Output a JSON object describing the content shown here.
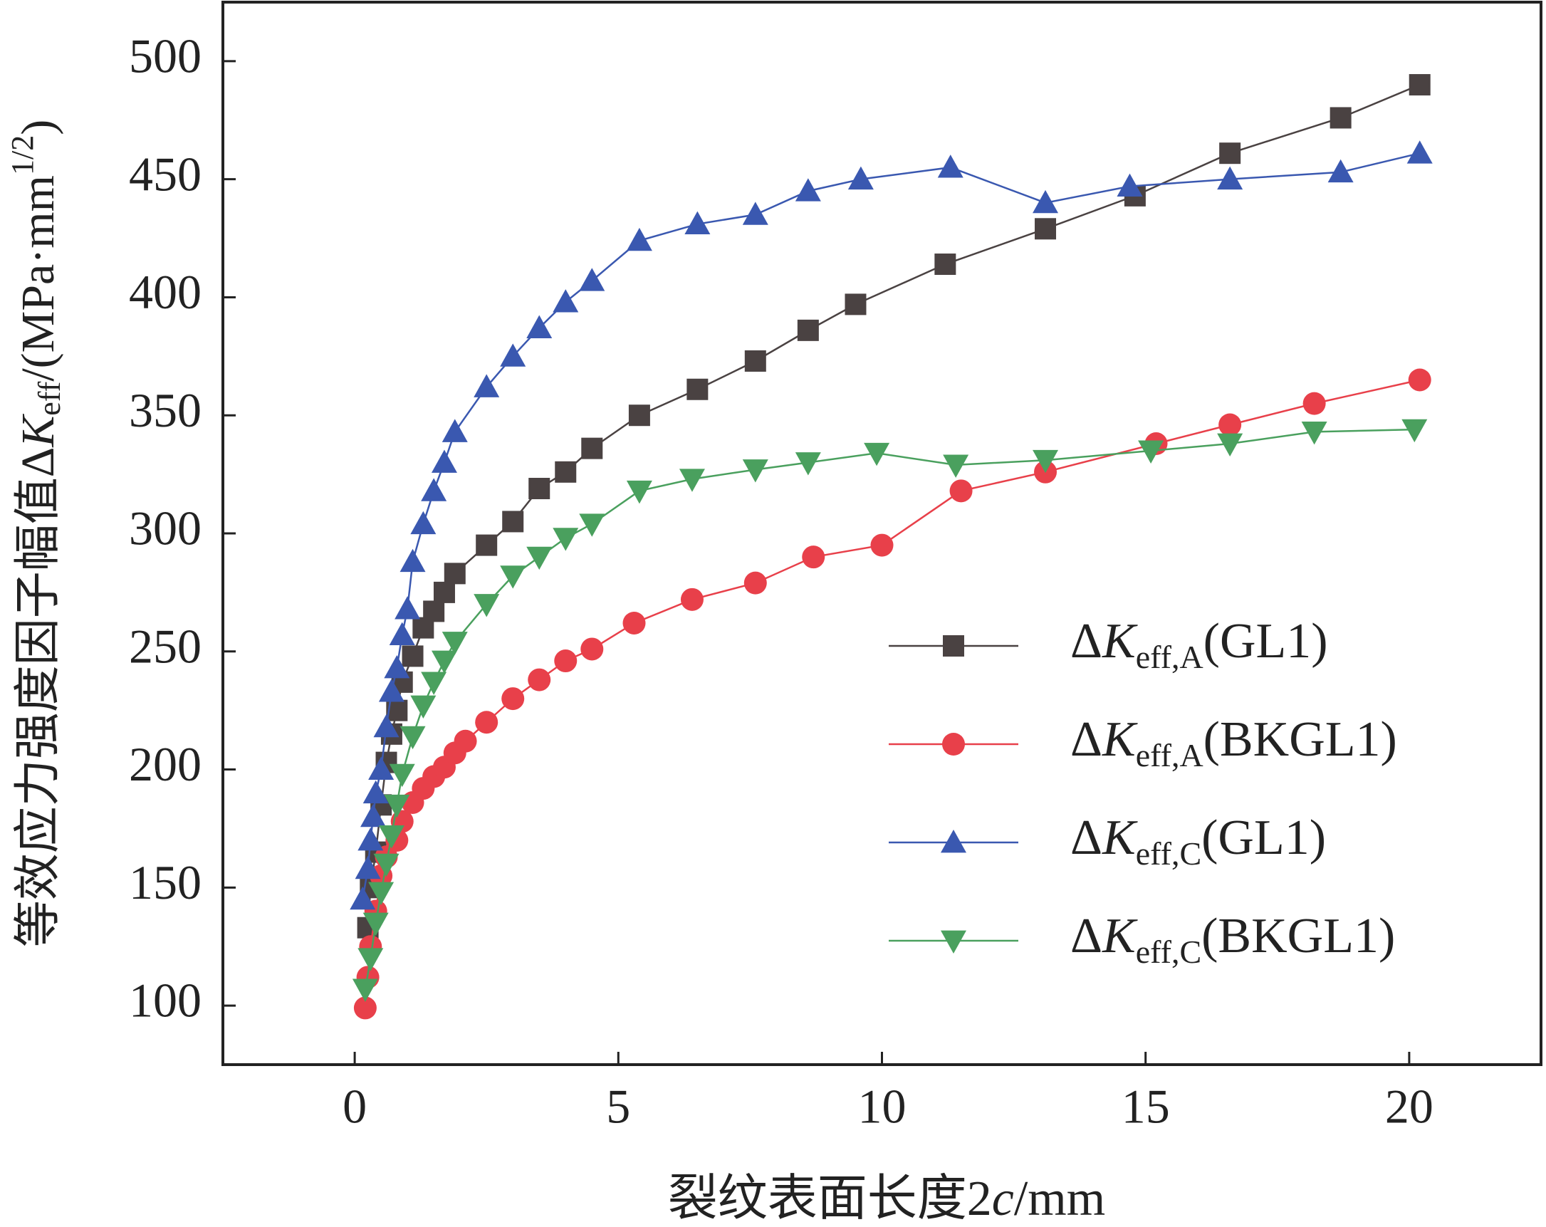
{
  "chart_data": {
    "type": "line",
    "xlabel": [
      "裂纹表面长度2",
      "c",
      "/mm"
    ],
    "ylabel": [
      "等效应力强度因子幅值Δ",
      "K",
      "eff",
      "/(MPa·mm",
      "1/2",
      ")"
    ],
    "xlim": [
      -2.5,
      22.5
    ],
    "xticks": [
      0,
      5,
      10,
      15,
      20
    ],
    "ylim": [
      75,
      525
    ],
    "yticks": [
      100,
      150,
      200,
      250,
      300,
      350,
      400,
      450,
      500
    ],
    "legend": "center right",
    "series": [
      {
        "name": [
          "Δ",
          "K",
          "eff,A",
          "(GL1)"
        ],
        "color": "#4a4242",
        "marker": "square",
        "x": [
          0.25,
          0.3,
          0.4,
          0.5,
          0.6,
          0.7,
          0.8,
          0.9,
          1.1,
          1.3,
          1.5,
          1.7,
          1.9,
          2.5,
          3.0,
          3.5,
          4.0,
          4.5,
          5.4,
          6.5,
          7.6,
          8.6,
          9.5,
          11.2,
          13.1,
          14.8,
          16.6,
          18.7,
          20.2
        ],
        "values": [
          133,
          150,
          165,
          185,
          203,
          215,
          225,
          237,
          248,
          260,
          267,
          275,
          283,
          295,
          305,
          319,
          326,
          336,
          350,
          361,
          373,
          386,
          397,
          414,
          429,
          443,
          461,
          476,
          490
        ]
      },
      {
        "name": [
          "Δ",
          "K",
          "eff,A",
          "(BKGL1)"
        ],
        "color": "#e8404a",
        "marker": "circle",
        "x": [
          0.2,
          0.25,
          0.3,
          0.4,
          0.5,
          0.6,
          0.8,
          0.9,
          1.1,
          1.3,
          1.5,
          1.7,
          1.9,
          2.1,
          2.5,
          3.0,
          3.5,
          4.0,
          4.5,
          5.3,
          6.4,
          7.6,
          8.7,
          10.0,
          11.5,
          13.1,
          15.2,
          16.6,
          18.2,
          20.2
        ],
        "values": [
          99,
          112,
          125,
          140,
          155,
          163,
          170,
          178,
          186,
          192,
          197,
          201,
          207,
          212,
          220,
          230,
          238,
          246,
          251,
          262,
          272,
          279,
          290,
          295,
          318,
          326,
          338,
          346,
          355,
          365
        ]
      },
      {
        "name": [
          "Δ",
          "K",
          "eff,C",
          "(GL1)"
        ],
        "color": "#3a58b0",
        "marker": "triangle-up",
        "x": [
          0.15,
          0.25,
          0.3,
          0.35,
          0.4,
          0.5,
          0.6,
          0.7,
          0.8,
          0.9,
          1.0,
          1.1,
          1.3,
          1.5,
          1.7,
          1.9,
          2.5,
          3.0,
          3.5,
          4.0,
          4.5,
          5.4,
          6.5,
          7.6,
          8.6,
          9.6,
          11.3,
          13.1,
          14.7,
          16.6,
          18.7,
          20.2
        ],
        "values": [
          145,
          158,
          170,
          180,
          190,
          200,
          218,
          233,
          243,
          257,
          268,
          288,
          304,
          318,
          330,
          343,
          362,
          375,
          387,
          398,
          407,
          424,
          431,
          435,
          445,
          450,
          455,
          440,
          447,
          450,
          453,
          461
        ]
      },
      {
        "name": [
          "Δ",
          "K",
          "eff,C",
          "(BKGL1)"
        ],
        "color": "#4aa05e",
        "marker": "triangle-down",
        "x": [
          0.2,
          0.3,
          0.4,
          0.5,
          0.6,
          0.7,
          0.8,
          0.9,
          1.1,
          1.3,
          1.5,
          1.7,
          1.9,
          2.5,
          3.0,
          3.5,
          4.0,
          4.5,
          5.4,
          6.4,
          7.6,
          8.6,
          9.9,
          11.4,
          13.1,
          15.1,
          16.6,
          18.2,
          20.1
        ],
        "values": [
          107,
          120,
          135,
          148,
          160,
          172,
          185,
          198,
          214,
          227,
          237,
          246,
          254,
          270,
          282,
          290,
          298,
          304,
          318,
          323,
          327,
          330,
          334,
          329,
          331,
          335,
          338,
          343,
          344
        ]
      }
    ]
  }
}
